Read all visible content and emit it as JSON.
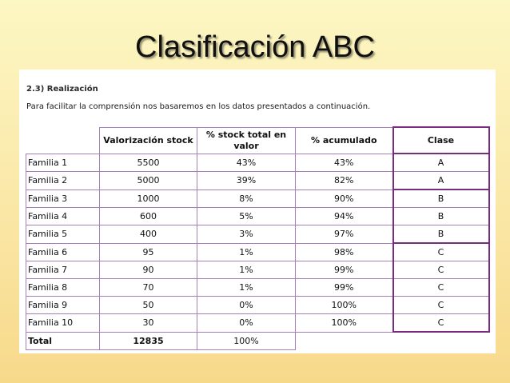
{
  "title": "Clasificación ABC",
  "section_heading": "2.3) Realización",
  "intro": "Para facilitar la comprensión nos basaremos en los datos presentados a continuación.",
  "table": {
    "headers": [
      "Valorización stock",
      "% stock total en valor",
      "% acumulado",
      "Clase"
    ],
    "rows": [
      {
        "familia": "Familia 1",
        "valor": "5500",
        "pct": "43%",
        "acum": "43%",
        "clase": "A"
      },
      {
        "familia": "Familia 2",
        "valor": "5000",
        "pct": "39%",
        "acum": "82%",
        "clase": "A"
      },
      {
        "familia": "Familia 3",
        "valor": "1000",
        "pct": "8%",
        "acum": "90%",
        "clase": "B"
      },
      {
        "familia": "Familia 4",
        "valor": "600",
        "pct": "5%",
        "acum": "94%",
        "clase": "B"
      },
      {
        "familia": "Familia 5",
        "valor": "400",
        "pct": "3%",
        "acum": "97%",
        "clase": "B"
      },
      {
        "familia": "Familia 6",
        "valor": "95",
        "pct": "1%",
        "acum": "98%",
        "clase": "C"
      },
      {
        "familia": "Familia 7",
        "valor": "90",
        "pct": "1%",
        "acum": "99%",
        "clase": "C"
      },
      {
        "familia": "Familia 8",
        "valor": "70",
        "pct": "1%",
        "acum": "99%",
        "clase": "C"
      },
      {
        "familia": "Familia 9",
        "valor": "50",
        "pct": "0%",
        "acum": "100%",
        "clase": "C"
      },
      {
        "familia": "Familia 10",
        "valor": "30",
        "pct": "0%",
        "acum": "100%",
        "clase": "C"
      }
    ],
    "total": {
      "label": "Total",
      "valor": "12835",
      "pct": "100%"
    }
  }
}
